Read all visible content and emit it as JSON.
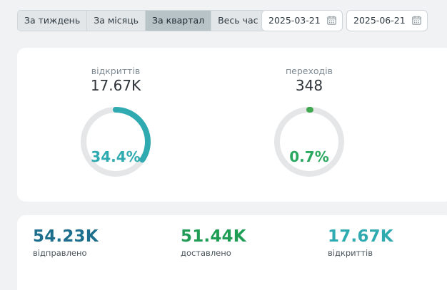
{
  "period_tabs": [
    {
      "label": "За тиждень",
      "active": false
    },
    {
      "label": "За місяць",
      "active": false
    },
    {
      "label": "За квартал",
      "active": true
    },
    {
      "label": "Весь час",
      "active": false
    }
  ],
  "date_from": {
    "value": "2025-03-21",
    "icon": "calendar-icon"
  },
  "date_to": {
    "value": "2025-06-21",
    "icon": "calendar-icon"
  },
  "gauges": [
    {
      "label": "відкриттів",
      "value": "17.67K",
      "percent_text": "34.4%",
      "percent": 34.4,
      "color": "#2eaab0",
      "text_color": "#2eaab0"
    },
    {
      "label": "переходів",
      "value": "348",
      "percent_text": "0.7%",
      "percent": 0.7,
      "color": "#3fa84f",
      "text_color": "#2aa85f"
    }
  ],
  "stats": [
    {
      "value": "54.23K",
      "caption": "відправлено",
      "color": "#1c6e8c"
    },
    {
      "value": "51.44K",
      "caption": "доставлено",
      "color": "#1f9d55"
    },
    {
      "value": "17.67K",
      "caption": "відкриттів",
      "color": "#2eaab0"
    }
  ],
  "colors": {
    "track": "#e4e6e8",
    "active_tab": "#b7c3c6",
    "background": "#f1f2f4"
  }
}
